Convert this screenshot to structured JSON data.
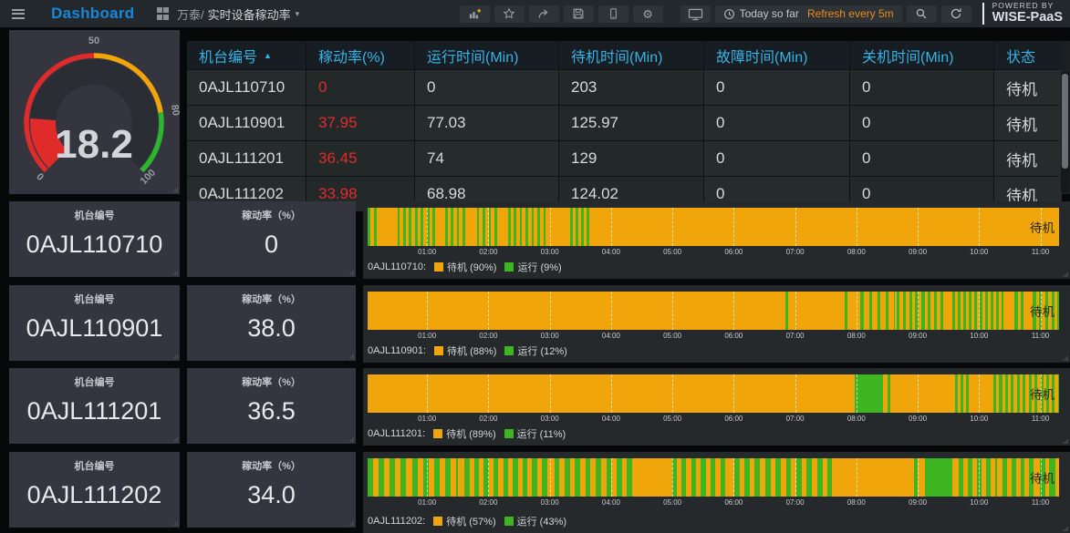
{
  "navbar": {
    "logo": "Dashboard",
    "breadcrumb_org": "万泰/",
    "breadcrumb_page": "实时设备稼动率",
    "caret": "▾",
    "time_label": "Today so far",
    "refresh_label": "Refresh every 5m",
    "powered_by": "POWERED BY",
    "brand": "WISE-PaaS",
    "icons": [
      "add-panel-icon",
      "star-icon",
      "share-icon",
      "save-icon",
      "mobile-icon",
      "settings-icon",
      "monitor-icon",
      "clock-icon",
      "search-icon",
      "refresh-icon"
    ]
  },
  "colors": {
    "standby": "#f0a50a",
    "running": "#3cb521",
    "alert_red": "#e02b2b",
    "header_blue": "#33b5e5",
    "logo_blue": "#1a86d8",
    "refresh_orange": "#f08a1c"
  },
  "table": {
    "headers": [
      "机台编号",
      "稼动率(%)",
      "运行时间(Min)",
      "待机时间(Min)",
      "故障时间(Min)",
      "关机时间(Min)",
      "状态"
    ],
    "sort_arrow": "▲",
    "rows": [
      {
        "id": "0AJL110710",
        "rate": "0",
        "run": "0",
        "standby": "203",
        "fault": "0",
        "off": "0",
        "status": "待机"
      },
      {
        "id": "0AJL110901",
        "rate": "37.95",
        "run": "77.03",
        "standby": "125.97",
        "fault": "0",
        "off": "0",
        "status": "待机"
      },
      {
        "id": "0AJL111201",
        "rate": "36.45",
        "run": "74",
        "standby": "129",
        "fault": "0",
        "off": "0",
        "status": "待机"
      },
      {
        "id": "0AJL111202",
        "rate": "33.98",
        "run": "68.98",
        "standby": "124.02",
        "fault": "0",
        "off": "0",
        "status": "待机"
      }
    ]
  },
  "left_panels": {
    "id_title": "机台编号",
    "rate_title": "稼动率（%）",
    "items": [
      {
        "id": "0AJL110710",
        "rate": "0"
      },
      {
        "id": "0AJL110901",
        "rate": "38.0"
      },
      {
        "id": "0AJL111201",
        "rate": "36.5"
      },
      {
        "id": "0AJL111202",
        "rate": "34.0"
      }
    ]
  },
  "timeline_axis": {
    "ticks": [
      {
        "t": "01:00",
        "f": 0.086
      },
      {
        "t": "02:00",
        "f": 0.1747
      },
      {
        "t": "03:00",
        "f": 0.2634
      },
      {
        "t": "04:00",
        "f": 0.3521
      },
      {
        "t": "05:00",
        "f": 0.4408
      },
      {
        "t": "06:00",
        "f": 0.5295
      },
      {
        "t": "07:00",
        "f": 0.6182
      },
      {
        "t": "08:00",
        "f": 0.7069
      },
      {
        "t": "09:00",
        "f": 0.7956
      },
      {
        "t": "10:00",
        "f": 0.8843
      },
      {
        "t": "11:00",
        "f": 0.973
      }
    ]
  },
  "chart_data": [
    {
      "type": "gauge",
      "value": 18.2,
      "display": "18.2",
      "min": 0,
      "max": 100,
      "tick_labels": [
        0,
        50,
        80,
        100
      ],
      "thresholds": [
        {
          "to": 50,
          "color": "#e02b2b"
        },
        {
          "to": 80,
          "color": "#f0a50a"
        },
        {
          "to": 100,
          "color": "#2db52d"
        }
      ],
      "value_color": "#d4d5d8"
    },
    {
      "type": "timeline",
      "machine": "0AJL110710",
      "bar_label": "待机",
      "base_color": "#f0a50a",
      "stripe_color": "#3cb521",
      "legend": [
        {
          "label": "待机",
          "pct": "(90%)",
          "color": "#f0a50a"
        },
        {
          "label": "运行",
          "pct": "(9%)",
          "color": "#3cb521"
        }
      ],
      "green_ranges": [
        [
          0.0,
          0.014,
          0.009,
          0.45
        ],
        [
          0.043,
          0.1,
          0.0085,
          0.42
        ],
        [
          0.112,
          0.145,
          0.0085,
          0.42
        ],
        [
          0.158,
          0.19,
          0.0085,
          0.42
        ],
        [
          0.203,
          0.26,
          0.0085,
          0.42
        ],
        [
          0.293,
          0.325,
          0.008,
          0.45
        ]
      ]
    },
    {
      "type": "timeline",
      "machine": "0AJL110901",
      "bar_label": "待机",
      "base_color": "#f0a50a",
      "stripe_color": "#3cb521",
      "legend": [
        {
          "label": "待机",
          "pct": "(88%)",
          "color": "#f0a50a"
        },
        {
          "label": "运行",
          "pct": "(12%)",
          "color": "#3cb521"
        }
      ],
      "green_ranges": [
        [
          0.604,
          0.61,
          0.006,
          0.7
        ],
        [
          0.69,
          0.7,
          0.01,
          0.45
        ],
        [
          0.713,
          0.762,
          0.012,
          0.35
        ],
        [
          0.765,
          0.832,
          0.009,
          0.5
        ],
        [
          0.845,
          0.92,
          0.008,
          0.55
        ],
        [
          0.936,
          0.948,
          0.009,
          0.45
        ],
        [
          0.962,
          1.0,
          0.009,
          0.5
        ]
      ]
    },
    {
      "type": "timeline",
      "machine": "0AJL111201",
      "bar_label": "待机",
      "base_color": "#f0a50a",
      "stripe_color": "#3cb521",
      "legend": [
        {
          "label": "待机",
          "pct": "(89%)",
          "color": "#f0a50a"
        },
        {
          "label": "运行",
          "pct": "(11%)",
          "color": "#3cb521"
        }
      ],
      "green_ranges": [
        [
          0.705,
          0.745,
          0.04,
          1.0
        ],
        [
          0.752,
          0.758,
          0.006,
          0.7
        ],
        [
          0.85,
          0.872,
          0.008,
          0.45
        ],
        [
          0.905,
          1.0,
          0.0085,
          0.48
        ]
      ]
    },
    {
      "type": "timeline",
      "machine": "0AJL111202",
      "bar_label": "待机",
      "base_color": "#f0a50a",
      "stripe_color": "#3cb521",
      "legend": [
        {
          "label": "待机",
          "pct": "(57%)",
          "color": "#f0a50a"
        },
        {
          "label": "运行",
          "pct": "(43%)",
          "color": "#3cb521"
        }
      ],
      "green_ranges": [
        [
          0.0,
          0.13,
          0.016,
          0.5
        ],
        [
          0.14,
          0.26,
          0.014,
          0.52
        ],
        [
          0.27,
          0.39,
          0.015,
          0.5
        ],
        [
          0.44,
          0.52,
          0.014,
          0.5
        ],
        [
          0.53,
          0.672,
          0.015,
          0.52
        ],
        [
          0.79,
          0.8,
          0.01,
          0.5
        ],
        [
          0.806,
          0.846,
          0.04,
          1.0
        ],
        [
          0.855,
          0.91,
          0.013,
          0.5
        ],
        [
          0.918,
          0.965,
          0.013,
          0.5
        ],
        [
          0.972,
          1.0,
          0.014,
          0.6
        ]
      ]
    }
  ]
}
